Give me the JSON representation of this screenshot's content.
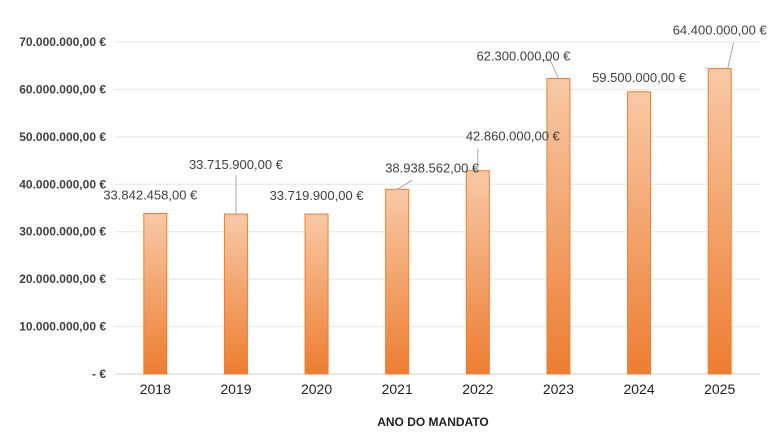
{
  "chart_data": {
    "type": "bar",
    "title": "",
    "xlabel": "ANO DO MANDATO",
    "ylabel": "",
    "categories": [
      "2018",
      "2019",
      "2020",
      "2021",
      "2022",
      "2023",
      "2024",
      "2025"
    ],
    "values": [
      33842458,
      33715900,
      33719900,
      38938562,
      42860000,
      62300000,
      59500000,
      64400000
    ],
    "data_labels": [
      "33.842.458,00 €",
      "33.715.900,00 €",
      "33.719.900,00 €",
      "38.938.562,00 €",
      "42.860.000,00 €",
      "62.300.000,00 €",
      "59.500.000,00 €",
      "64.400.000,00 €"
    ],
    "ylim": [
      0,
      70000000
    ],
    "yticks": [
      0,
      10000000,
      20000000,
      30000000,
      40000000,
      50000000,
      60000000,
      70000000
    ],
    "ytick_labels": [
      "-  €",
      "10.000.000,00 €",
      "20.000.000,00 €",
      "30.000.000,00 €",
      "40.000.000,00 €",
      "50.000.000,00 €",
      "60.000.000,00 €",
      "70.000.000,00 €"
    ],
    "grid": true,
    "legend": "none",
    "colors": {
      "bar_top": "#f8c9a6",
      "bar_bottom": "#ed7d31",
      "bar_edge": "#ed7d31",
      "grid": "#e6e6e6",
      "leader": "#a6a6a6"
    }
  }
}
